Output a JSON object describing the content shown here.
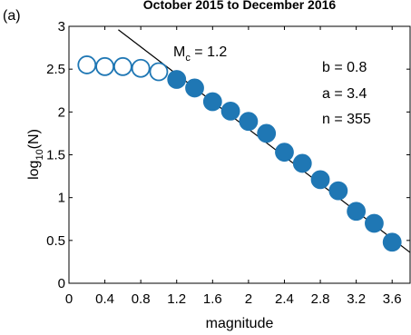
{
  "chart_data": {
    "type": "scatter",
    "panel_label": "(a)",
    "title": "October 2015 to December 2016",
    "xlabel": "magnitude",
    "ylabel": {
      "base": "log",
      "sub": "10",
      "rest": "(N)"
    },
    "xlim": [
      0,
      3.8
    ],
    "ylim": [
      0,
      3
    ],
    "xticks": [
      0,
      0.4,
      0.8,
      1.2,
      1.6,
      2.0,
      2.4,
      2.8,
      3.2,
      3.6
    ],
    "xtick_labels": [
      "0",
      "0.4",
      "0.8",
      "1.2",
      "1.6",
      "2",
      "2.4",
      "2.8",
      "3.2",
      "3.6"
    ],
    "yticks": [
      0,
      0.5,
      1,
      1.5,
      2,
      2.5,
      3
    ],
    "ytick_labels": [
      "0",
      "0.5",
      "1",
      "1.5",
      "2",
      "2.5",
      "3"
    ],
    "grid": false,
    "point_color": "#1f77b4",
    "line_color": "#000000",
    "b_color": "#e8262a",
    "series": [
      {
        "style": "open",
        "x": [
          0.2,
          0.4,
          0.6,
          0.8,
          1.0
        ],
        "y": [
          2.55,
          2.53,
          2.53,
          2.51,
          2.47
        ]
      },
      {
        "style": "filled",
        "x": [
          1.2,
          1.4,
          1.6,
          1.8,
          2.0,
          2.2,
          2.4,
          2.6,
          2.8,
          3.0,
          3.2,
          3.4,
          3.6
        ],
        "y": [
          2.38,
          2.28,
          2.12,
          2.01,
          1.89,
          1.75,
          1.53,
          1.4,
          1.21,
          1.08,
          0.84,
          0.7,
          0.48
        ]
      }
    ],
    "fit_line": {
      "intercept": 3.4,
      "slope": -0.8,
      "x_range": [
        0.55,
        3.8
      ]
    },
    "annotations": {
      "mc": {
        "base": "M",
        "sub": "c",
        "rest": " = 1.2"
      },
      "b": "b = 0.8",
      "a": "a = 3.4",
      "n": "n = 355"
    }
  }
}
